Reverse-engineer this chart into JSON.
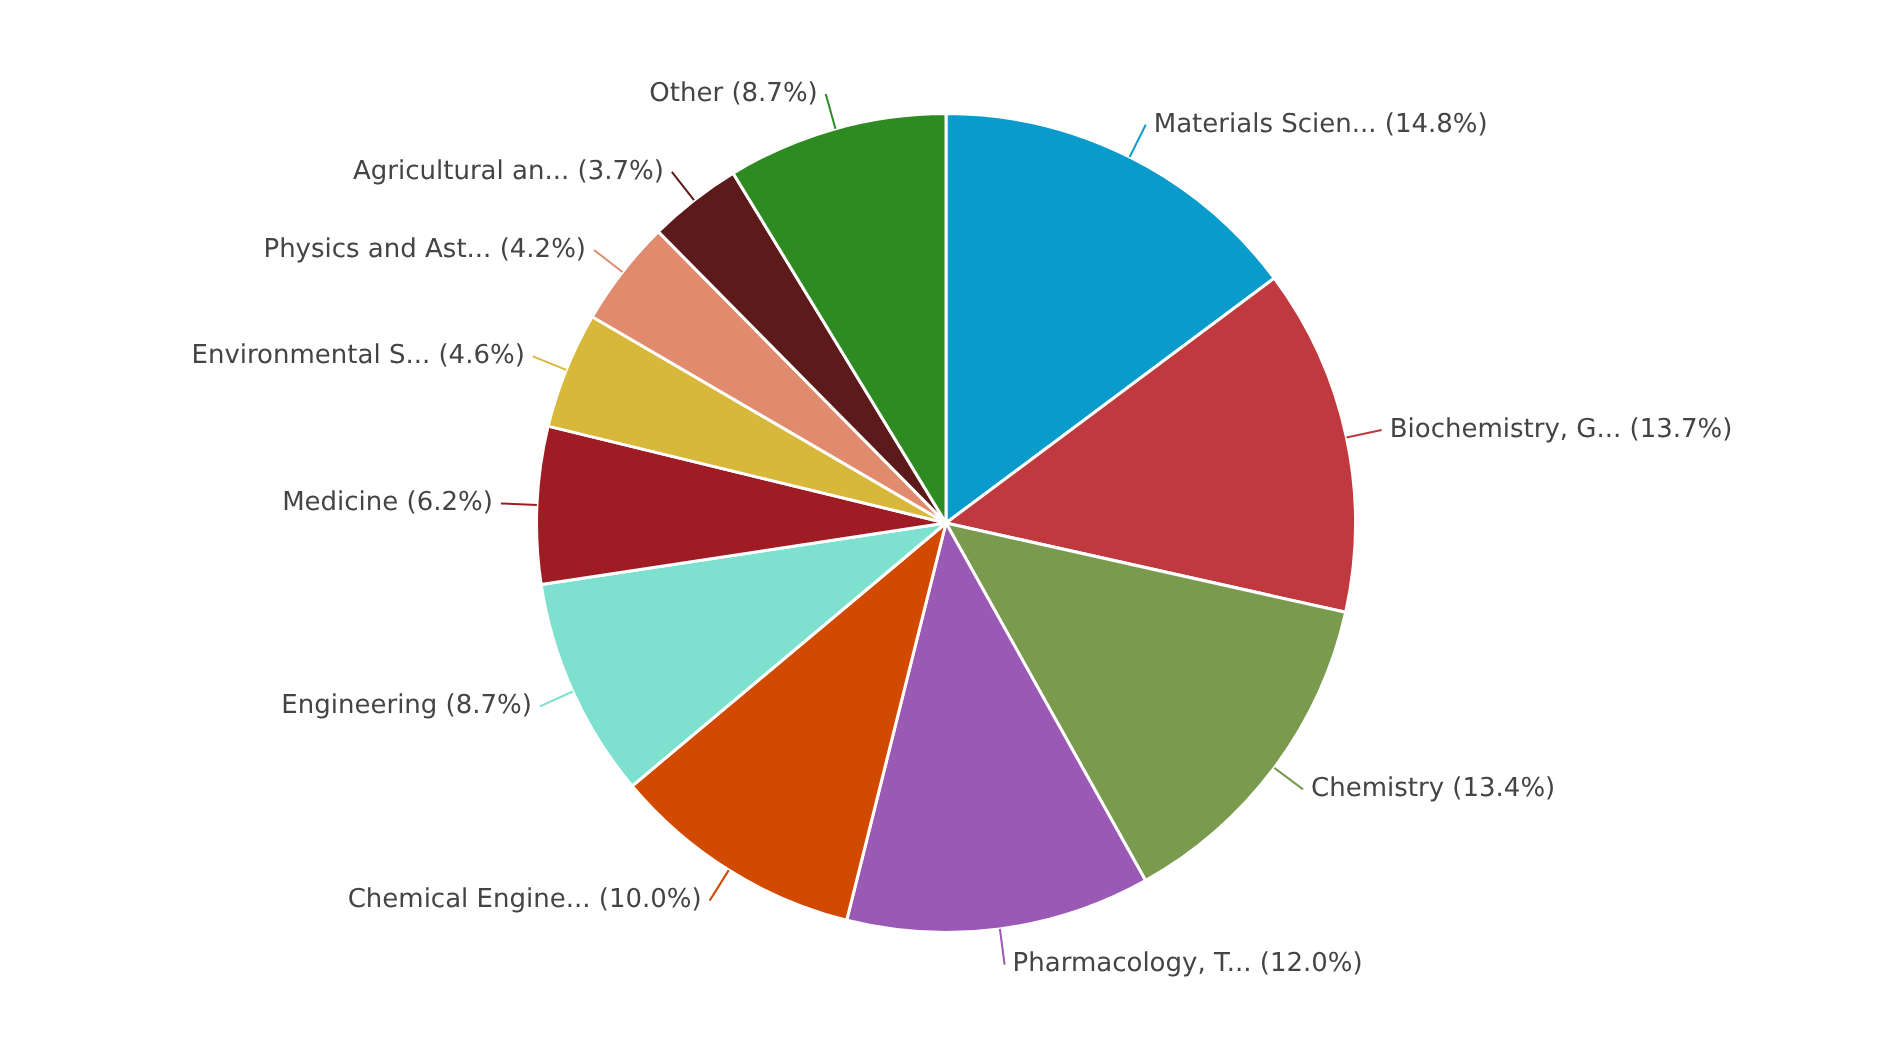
{
  "chart_data": {
    "type": "pie",
    "categories": [
      "Materials Scien...",
      "Biochemistry, G...",
      "Chemistry",
      "Pharmacology, T...",
      "Chemical Engine...",
      "Engineering",
      "Medicine",
      "Environmental S...",
      "Physics and Ast...",
      "Agricultural an...",
      "Other"
    ],
    "values": [
      14.8,
      13.7,
      13.4,
      12.0,
      10.0,
      8.7,
      6.2,
      4.6,
      4.2,
      3.7,
      8.7
    ],
    "value_labels": [
      "(14.8%)",
      "(13.7%)",
      "(13.4%)",
      "(12.0%)",
      "(10.0%)",
      "(8.7%)",
      "(6.2%)",
      "(4.6%)",
      "(4.2%)",
      "(3.7%)",
      "(8.7%)"
    ],
    "colors": [
      "#0a9bcd",
      "#c0393f",
      "#7a9a4e",
      "#9b59b6",
      "#d24a00",
      "#7ee0cf",
      "#a01c25",
      "#d8b83a",
      "#e08a6e",
      "#5c1a1a",
      "#2e8b22"
    ]
  }
}
